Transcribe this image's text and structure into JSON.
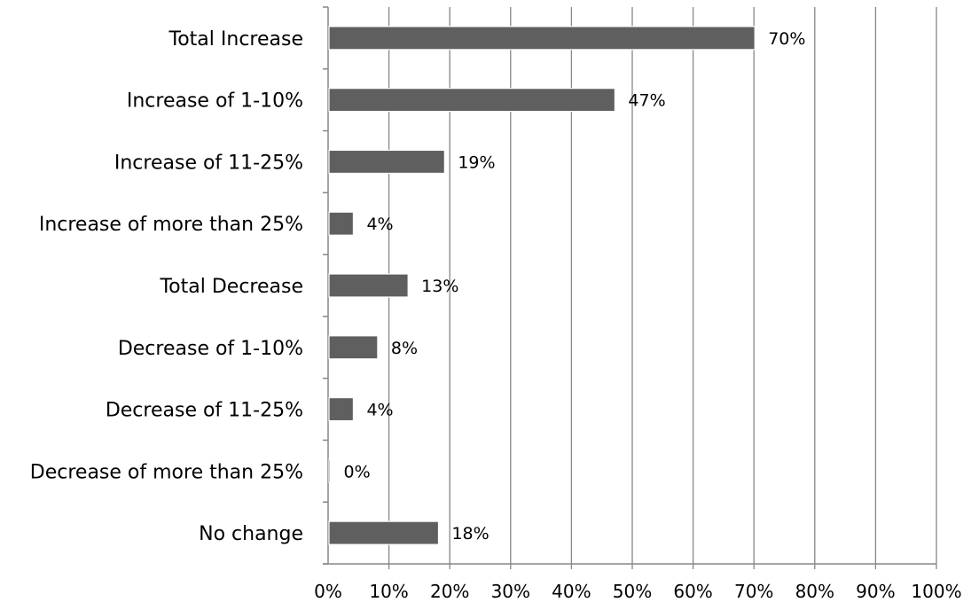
{
  "chart_data": {
    "type": "bar",
    "orientation": "horizontal",
    "categories": [
      "Total Increase",
      "Increase of 1-10%",
      "Increase of 11-25%",
      "Increase of more than 25%",
      "Total Decrease",
      "Decrease of 1-10%",
      "Decrease of 11-25%",
      "Decrease of more than 25%",
      "No change"
    ],
    "values": [
      70,
      47,
      19,
      4,
      13,
      8,
      4,
      0,
      18
    ],
    "data_labels": [
      "70%",
      "47%",
      "19%",
      "4%",
      "13%",
      "8%",
      "4%",
      "0%",
      "18%"
    ],
    "x_ticks": [
      "0%",
      "10%",
      "20%",
      "30%",
      "40%",
      "50%",
      "60%",
      "70%",
      "80%",
      "90%",
      "100%"
    ],
    "xlim": [
      0,
      100
    ],
    "title": "",
    "xlabel": "",
    "ylabel": "",
    "grid": "vertical",
    "legend": "none",
    "bar_color": "#5f5f5f",
    "grid_color": "#878787",
    "axis_color": "#878787"
  }
}
